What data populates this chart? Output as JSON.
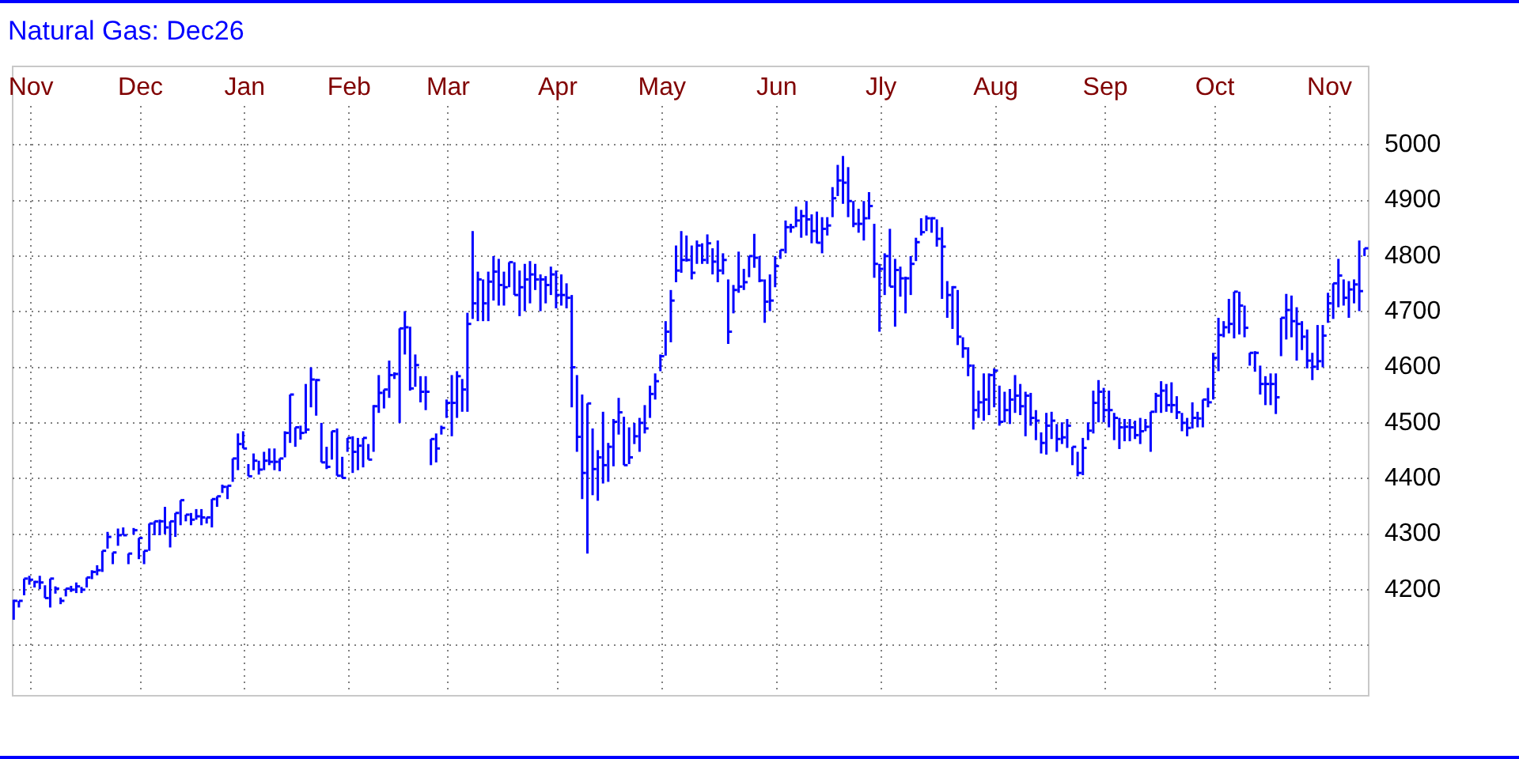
{
  "chart_data": {
    "type": "scatter",
    "title": "Natural Gas: Dec26",
    "color": "#0000ff",
    "grid": true,
    "categories": [
      null,
      null,
      null,
      "Nov",
      null,
      null,
      null,
      null,
      null,
      null,
      null,
      null,
      null,
      null,
      null,
      null,
      null,
      null,
      null,
      null,
      null,
      null,
      null,
      null,
      "Dec",
      null,
      null,
      null,
      null,
      null,
      null,
      null,
      null,
      null,
      null,
      null,
      null,
      null,
      null,
      null,
      null,
      null,
      null,
      null,
      "Jan",
      null,
      null,
      null,
      null,
      null,
      null,
      null,
      null,
      null,
      null,
      null,
      null,
      null,
      null,
      null,
      null,
      null,
      null,
      null,
      "Feb",
      null,
      null,
      null,
      null,
      null,
      null,
      null,
      null,
      null,
      null,
      null,
      null,
      null,
      null,
      null,
      null,
      null,
      null,
      "Mar",
      null,
      null,
      null,
      null,
      null,
      null,
      null,
      null,
      null,
      null,
      null,
      null,
      null,
      null,
      null,
      null,
      null,
      null,
      null,
      null,
      "Apr",
      null,
      null,
      null,
      null,
      null,
      null,
      null,
      null,
      null,
      null,
      null,
      null,
      null,
      null,
      null,
      null,
      null,
      null,
      null,
      "May",
      null,
      null,
      null,
      null,
      null,
      null,
      null,
      null,
      null,
      null,
      null,
      null,
      null,
      null,
      null,
      null,
      null,
      null,
      null,
      null,
      null,
      "Jun",
      null,
      null,
      null,
      null,
      null,
      null,
      null,
      null,
      null,
      null,
      null,
      null,
      null,
      null,
      null,
      null,
      null,
      null,
      null,
      "Jly",
      null,
      null,
      null,
      null,
      null,
      null,
      null,
      null,
      null,
      null,
      null,
      null,
      null,
      null,
      null,
      null,
      null,
      null,
      null,
      null,
      null,
      "Aug",
      null,
      null,
      null,
      null,
      null,
      null,
      null,
      null,
      null,
      null,
      null,
      null,
      null,
      null,
      null,
      null,
      null,
      null,
      null,
      null,
      "Sep",
      null,
      null,
      null,
      null,
      null,
      null,
      null,
      null,
      null,
      null,
      null,
      null,
      null,
      null,
      null,
      null,
      null,
      null,
      null,
      null,
      "Oct",
      null,
      null,
      null,
      null,
      null,
      null,
      null,
      null,
      null,
      null,
      null,
      null,
      null,
      null,
      null,
      null,
      null,
      null,
      null,
      null,
      null,
      "Nov",
      null,
      null,
      null,
      null,
      null,
      null,
      null
    ],
    "ylim": [
      4015,
      5070
    ],
    "yticks": [
      {
        "value": 4100,
        "label": null
      },
      4200,
      4300,
      4400,
      4500,
      4600,
      4700,
      4800,
      4900,
      5000
    ],
    "values": [
      4180,
      4180,
      4220,
      4218,
      4214,
      4213,
      4185,
      4220,
      4202,
      4180,
      4202,
      4200,
      4206,
      4200,
      4222,
      4232,
      4235,
      4270,
      4295,
      4267,
      4298,
      4298,
      4265,
      4307,
      4293,
      4270,
      4319,
      4323,
      4323,
      4312,
      4323,
      4338,
      4361,
      4335,
      4326,
      4332,
      4330,
      4330,
      4363,
      4368,
      4385,
      4387,
      4436,
      4462,
      4454,
      4404,
      4432,
      4416,
      4432,
      4430,
      4430,
      4436,
      4482,
      4551,
      4492,
      4482,
      4488,
      4578,
      4577,
      4429,
      4421,
      4485,
      4405,
      4401,
      4473,
      4448,
      4459,
      4473,
      4434,
      4530,
      4554,
      4560,
      4586,
      4588,
      4670,
      4672,
      4562,
      4604,
      4556,
      4556,
      4471,
      4454,
      4491,
      4536,
      4536,
      4584,
      4560,
      4678,
      4715,
      4758,
      4715,
      4754,
      4772,
      4748,
      4744,
      4789,
      4730,
      4744,
      4758,
      4767,
      4758,
      4758,
      4748,
      4767,
      4730,
      4730,
      4725,
      4600,
      4475,
      4410,
      4535,
      4417,
      4438,
      4424,
      4457,
      4502,
      4519,
      4424,
      4438,
      4476,
      4500,
      4490,
      4552,
      4575,
      4620,
      4664,
      4720,
      4774,
      4793,
      4793,
      4770,
      4819,
      4793,
      4823,
      4790,
      4774,
      4793,
      4664,
      4739,
      4745,
      4753,
      4800,
      4797,
      4756,
      4718,
      4720,
      4782,
      4811,
      4852,
      4852,
      4864,
      4872,
      4866,
      4845,
      4824,
      4849,
      4855,
      4904,
      4936,
      4932,
      4899,
      4858,
      4858,
      4868,
      4890,
      4786,
      4777,
      4800,
      4745,
      4775,
      4760,
      4760,
      4786,
      4825,
      4843,
      4868,
      4868,
      4831,
      4817,
      4730,
      4744,
      4655,
      4634,
      4603,
      4523,
      4537,
      4542,
      4586,
      4594,
      4502,
      4523,
      4542,
      4549,
      4530,
      4549,
      4509,
      4504,
      4464,
      4495,
      4504,
      4471,
      4474,
      4495,
      4457,
      4410,
      4455,
      4486,
      4536,
      4556,
      4523,
      4523,
      4509,
      4492,
      4493,
      4492,
      4478,
      4485,
      4493,
      4520,
      4549,
      4558,
      4532,
      4532,
      4519,
      4500,
      4491,
      4509,
      4508,
      4542,
      4537,
      4617,
      4658,
      4672,
      4678,
      4736,
      4711,
      4671,
      4626,
      4626,
      4570,
      4570,
      4570,
      4546,
      4689,
      4703,
      4683,
      4678,
      4655,
      4612,
      4601,
      4611,
      4657,
      4715,
      4751,
      4765,
      4725,
      4740,
      4749,
      4737,
      4814
    ],
    "errors": [
      [
        4146,
        4182
      ],
      [
        4168,
        4180
      ],
      [
        4190,
        4220
      ],
      [
        4209,
        4225
      ],
      [
        4204,
        4216
      ],
      [
        4201,
        4225
      ],
      [
        4185,
        4208
      ],
      [
        4168,
        4220
      ],
      [
        4193,
        4206
      ],
      [
        4174,
        4186
      ],
      [
        4188,
        4202
      ],
      [
        4196,
        4207
      ],
      [
        4194,
        4213
      ],
      [
        4194,
        4205
      ],
      [
        4204,
        4222
      ],
      [
        4219,
        4235
      ],
      [
        4226,
        4244
      ],
      [
        4232,
        4270
      ],
      [
        4274,
        4304
      ],
      [
        4246,
        4267
      ],
      [
        4279,
        4310
      ],
      [
        4298,
        4312
      ],
      [
        4246,
        4265
      ],
      [
        4299,
        4311
      ],
      [
        4255,
        4293
      ],
      [
        4246,
        4270
      ],
      [
        4270,
        4319
      ],
      [
        4298,
        4323
      ],
      [
        4298,
        4326
      ],
      [
        4300,
        4349
      ],
      [
        4276,
        4323
      ],
      [
        4295,
        4338
      ],
      [
        4316,
        4361
      ],
      [
        4323,
        4335
      ],
      [
        4316,
        4338
      ],
      [
        4326,
        4345
      ],
      [
        4316,
        4345
      ],
      [
        4319,
        4330
      ],
      [
        4312,
        4363
      ],
      [
        4349,
        4368
      ],
      [
        4374,
        4389
      ],
      [
        4363,
        4387
      ],
      [
        4394,
        4436
      ],
      [
        4415,
        4481
      ],
      [
        4454,
        4485
      ],
      [
        4404,
        4426
      ],
      [
        4415,
        4445
      ],
      [
        4407,
        4432
      ],
      [
        4415,
        4448
      ],
      [
        4424,
        4454
      ],
      [
        4415,
        4454
      ],
      [
        4413,
        4436
      ],
      [
        4438,
        4485
      ],
      [
        4464,
        4551
      ],
      [
        4457,
        4492
      ],
      [
        4470,
        4495
      ],
      [
        4481,
        4570
      ],
      [
        4528,
        4600
      ],
      [
        4513,
        4579
      ],
      [
        4429,
        4500
      ],
      [
        4417,
        4457
      ],
      [
        4434,
        4485
      ],
      [
        4405,
        4490
      ],
      [
        4401,
        4439
      ],
      [
        4448,
        4473
      ],
      [
        4410,
        4476
      ],
      [
        4415,
        4473
      ],
      [
        4420,
        4473
      ],
      [
        4434,
        4462
      ],
      [
        4448,
        4532
      ],
      [
        4518,
        4586
      ],
      [
        4526,
        4560
      ],
      [
        4545,
        4612
      ],
      [
        4579,
        4591
      ],
      [
        4500,
        4670
      ],
      [
        4623,
        4701
      ],
      [
        4558,
        4673
      ],
      [
        4565,
        4623
      ],
      [
        4537,
        4584
      ],
      [
        4523,
        4584
      ],
      [
        4424,
        4471
      ],
      [
        4429,
        4481
      ],
      [
        4479,
        4495
      ],
      [
        4509,
        4542
      ],
      [
        4476,
        4586
      ],
      [
        4509,
        4593
      ],
      [
        4520,
        4579
      ],
      [
        4520,
        4698
      ],
      [
        4687,
        4845
      ],
      [
        4683,
        4772
      ],
      [
        4683,
        4758
      ],
      [
        4683,
        4772
      ],
      [
        4720,
        4800
      ],
      [
        4711,
        4795
      ],
      [
        4711,
        4772
      ],
      [
        4744,
        4789
      ],
      [
        4730,
        4789
      ],
      [
        4692,
        4774
      ],
      [
        4701,
        4786
      ],
      [
        4715,
        4791
      ],
      [
        4739,
        4786
      ],
      [
        4701,
        4767
      ],
      [
        4715,
        4764
      ],
      [
        4730,
        4781
      ],
      [
        4706,
        4774
      ],
      [
        4711,
        4767
      ],
      [
        4706,
        4751
      ],
      [
        4528,
        4730
      ],
      [
        4448,
        4586
      ],
      [
        4363,
        4551
      ],
      [
        4265,
        4535
      ],
      [
        4370,
        4490
      ],
      [
        4360,
        4451
      ],
      [
        4391,
        4520
      ],
      [
        4394,
        4464
      ],
      [
        4422,
        4507
      ],
      [
        4479,
        4545
      ],
      [
        4424,
        4511
      ],
      [
        4426,
        4492
      ],
      [
        4462,
        4500
      ],
      [
        4448,
        4509
      ],
      [
        4481,
        4532
      ],
      [
        4509,
        4567
      ],
      [
        4542,
        4589
      ],
      [
        4593,
        4623
      ],
      [
        4621,
        4683
      ],
      [
        4645,
        4739
      ],
      [
        4753,
        4819
      ],
      [
        4770,
        4845
      ],
      [
        4790,
        4837
      ],
      [
        4758,
        4819
      ],
      [
        4786,
        4828
      ],
      [
        4786,
        4823
      ],
      [
        4786,
        4839
      ],
      [
        4767,
        4814
      ],
      [
        4753,
        4828
      ],
      [
        4767,
        4805
      ],
      [
        4642,
        4758
      ],
      [
        4697,
        4748
      ],
      [
        4734,
        4808
      ],
      [
        4739,
        4777
      ],
      [
        4762,
        4800
      ],
      [
        4779,
        4840
      ],
      [
        4753,
        4800
      ],
      [
        4680,
        4758
      ],
      [
        4701,
        4767
      ],
      [
        4744,
        4800
      ],
      [
        4795,
        4811
      ],
      [
        4805,
        4864
      ],
      [
        4842,
        4858
      ],
      [
        4852,
        4889
      ],
      [
        4833,
        4883
      ],
      [
        4837,
        4899
      ],
      [
        4823,
        4875
      ],
      [
        4823,
        4880
      ],
      [
        4805,
        4870
      ],
      [
        4837,
        4870
      ],
      [
        4870,
        4924
      ],
      [
        4908,
        4964
      ],
      [
        4894,
        4980
      ],
      [
        4870,
        4960
      ],
      [
        4852,
        4899
      ],
      [
        4842,
        4885
      ],
      [
        4828,
        4899
      ],
      [
        4866,
        4915
      ],
      [
        4761,
        4858
      ],
      [
        4664,
        4786
      ],
      [
        4730,
        4805
      ],
      [
        4745,
        4849
      ],
      [
        4673,
        4795
      ],
      [
        4727,
        4781
      ],
      [
        4697,
        4763
      ],
      [
        4730,
        4800
      ],
      [
        4791,
        4833
      ],
      [
        4837,
        4868
      ],
      [
        4845,
        4873
      ],
      [
        4842,
        4870
      ],
      [
        4817,
        4866
      ],
      [
        4723,
        4852
      ],
      [
        4689,
        4755
      ],
      [
        4669,
        4746
      ],
      [
        4640,
        4739
      ],
      [
        4617,
        4654
      ],
      [
        4584,
        4636
      ],
      [
        4488,
        4605
      ],
      [
        4509,
        4558
      ],
      [
        4504,
        4589
      ],
      [
        4514,
        4589
      ],
      [
        4528,
        4598
      ],
      [
        4495,
        4567
      ],
      [
        4501,
        4556
      ],
      [
        4498,
        4561
      ],
      [
        4518,
        4586
      ],
      [
        4514,
        4570
      ],
      [
        4476,
        4556
      ],
      [
        4495,
        4554
      ],
      [
        4469,
        4523
      ],
      [
        4445,
        4483
      ],
      [
        4443,
        4518
      ],
      [
        4471,
        4520
      ],
      [
        4448,
        4498
      ],
      [
        4462,
        4501
      ],
      [
        4455,
        4507
      ],
      [
        4424,
        4457
      ],
      [
        4404,
        4448
      ],
      [
        4406,
        4473
      ],
      [
        4469,
        4501
      ],
      [
        4481,
        4558
      ],
      [
        4501,
        4577
      ],
      [
        4501,
        4563
      ],
      [
        4492,
        4558
      ],
      [
        4469,
        4518
      ],
      [
        4453,
        4509
      ],
      [
        4467,
        4507
      ],
      [
        4467,
        4507
      ],
      [
        4471,
        4504
      ],
      [
        4462,
        4509
      ],
      [
        4485,
        4507
      ],
      [
        4448,
        4520
      ],
      [
        4518,
        4554
      ],
      [
        4518,
        4575
      ],
      [
        4520,
        4570
      ],
      [
        4518,
        4573
      ],
      [
        4507,
        4548
      ],
      [
        4485,
        4518
      ],
      [
        4476,
        4509
      ],
      [
        4490,
        4537
      ],
      [
        4492,
        4520
      ],
      [
        4492,
        4542
      ],
      [
        4528,
        4563
      ],
      [
        4542,
        4626
      ],
      [
        4593,
        4689
      ],
      [
        4654,
        4683
      ],
      [
        4661,
        4723
      ],
      [
        4652,
        4736
      ],
      [
        4659,
        4736
      ],
      [
        4654,
        4711
      ],
      [
        4603,
        4626
      ],
      [
        4592,
        4629
      ],
      [
        4551,
        4603
      ],
      [
        4532,
        4584
      ],
      [
        4532,
        4589
      ],
      [
        4516,
        4589
      ],
      [
        4620,
        4689
      ],
      [
        4650,
        4732
      ],
      [
        4654,
        4729
      ],
      [
        4612,
        4708
      ],
      [
        4631,
        4683
      ],
      [
        4598,
        4668
      ],
      [
        4577,
        4626
      ],
      [
        4595,
        4676
      ],
      [
        4600,
        4676
      ],
      [
        4680,
        4734
      ],
      [
        4687,
        4751
      ],
      [
        4708,
        4795
      ],
      [
        4711,
        4758
      ],
      [
        4689,
        4755
      ],
      [
        4715,
        4758
      ],
      [
        4701,
        4828
      ],
      [
        4800,
        4814
      ]
    ]
  }
}
